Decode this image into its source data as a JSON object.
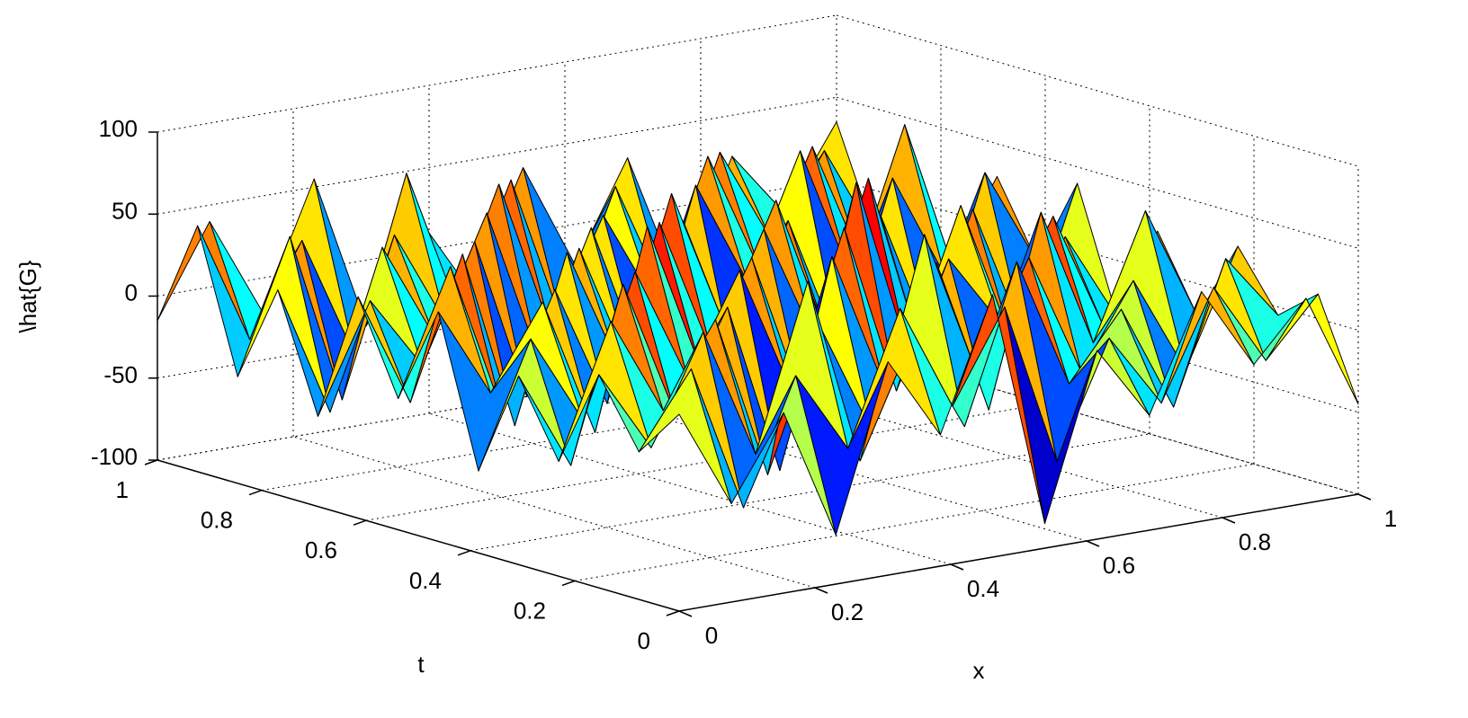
{
  "chart_data": {
    "type": "surface",
    "title": "",
    "xlabel": "x",
    "ylabel": "t",
    "zlabel": "\\hat{G}",
    "xlim": [
      0,
      1
    ],
    "ylim": [
      0,
      1
    ],
    "zlim": [
      -100,
      100
    ],
    "x_ticks": [
      "0",
      "0.2",
      "0.4",
      "0.6",
      "0.8",
      "1"
    ],
    "t_ticks": [
      "0",
      "0.2",
      "0.4",
      "0.6",
      "0.8",
      "1"
    ],
    "z_ticks": [
      "-100",
      "-50",
      "0",
      "50",
      "100"
    ],
    "grid": true,
    "colormap": "jet",
    "z": [
      [
        20,
        -40,
        10,
        -70,
        30,
        -20,
        60,
        -85,
        15,
        -30,
        40,
        -10,
        25,
        -45
      ],
      [
        -10,
        35,
        -55,
        20,
        -30,
        50,
        -15,
        40,
        -60,
        10,
        -35,
        30,
        -20,
        15
      ],
      [
        30,
        -20,
        45,
        -35,
        65,
        -50,
        20,
        -40,
        55,
        -25,
        15,
        -50,
        35,
        -5
      ],
      [
        -30,
        50,
        -10,
        40,
        -60,
        25,
        -45,
        70,
        -20,
        45,
        -30,
        20,
        -40,
        30
      ],
      [
        15,
        -45,
        60,
        -25,
        35,
        -70,
        55,
        -30,
        40,
        -55,
        60,
        -25,
        50,
        -20
      ],
      [
        -50,
        25,
        -30,
        55,
        -15,
        45,
        -35,
        60,
        -45,
        30,
        -15,
        45,
        -30,
        25
      ],
      [
        40,
        -15,
        35,
        -50,
        70,
        -20,
        40,
        -55,
        75,
        -35,
        50,
        -40,
        20,
        -35
      ],
      [
        -20,
        55,
        -40,
        30,
        -45,
        60,
        -25,
        45,
        -30,
        65,
        -45,
        35,
        -50,
        40
      ],
      [
        35,
        -35,
        50,
        -60,
        40,
        -35,
        65,
        -20,
        50,
        -40,
        30,
        -55,
        45,
        -15
      ],
      [
        -45,
        20,
        -25,
        45,
        -55,
        30,
        -50,
        35,
        -65,
        25,
        -60,
        40,
        -25,
        30
      ],
      [
        25,
        -55,
        40,
        -20,
        50,
        -45,
        30,
        -60,
        45,
        -20,
        55,
        -30,
        60,
        -40
      ],
      [
        -35,
        45,
        -60,
        35,
        -25,
        55,
        -40,
        25,
        -35,
        50,
        -25,
        45,
        -35,
        20
      ],
      [
        50,
        -25,
        30,
        -45,
        60,
        -30,
        45,
        -50,
        30,
        -45,
        40,
        -20,
        30,
        -30
      ],
      [
        -15,
        40,
        -20,
        55,
        -40,
        20,
        -30,
        40,
        -25,
        35,
        -50,
        25,
        -15,
        35
      ]
    ]
  }
}
